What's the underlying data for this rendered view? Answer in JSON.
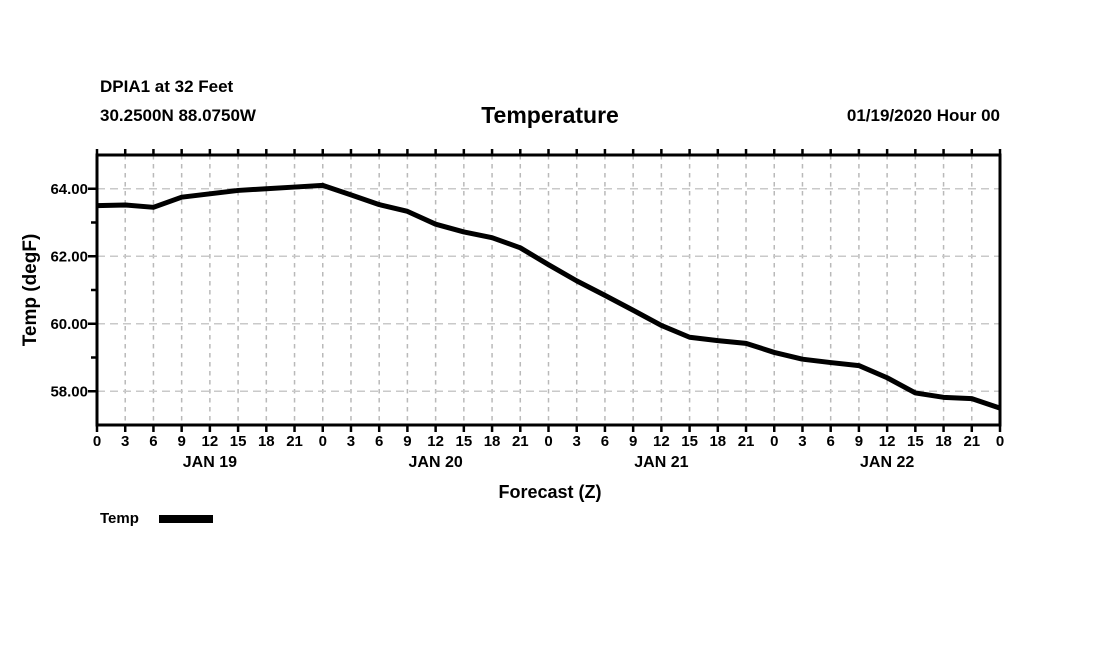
{
  "header": {
    "station": "DPIA1 at 32 Feet",
    "coordinates": "30.2500N 88.0750W",
    "title": "Temperature",
    "init_time": "01/19/2020 Hour 00"
  },
  "legend": {
    "label": "Temp",
    "swatch_color": "#000000"
  },
  "colors": {
    "line": "#000000",
    "grid_vertical": "#b9b9b9",
    "grid_horizontal": "#c9c9c9",
    "axis": "#000000",
    "text": "#000000",
    "background": "#ffffff"
  },
  "chart_data": {
    "type": "line",
    "title": "Temperature",
    "xlabel": "Forecast (Z)",
    "ylabel": "Temp (degF)",
    "xlim": [
      0,
      96
    ],
    "ylim": [
      57,
      65
    ],
    "grid": true,
    "x": [
      0,
      3,
      6,
      9,
      12,
      15,
      18,
      21,
      24,
      27,
      30,
      33,
      36,
      39,
      42,
      45,
      48,
      51,
      54,
      57,
      60,
      63,
      66,
      69,
      72,
      75,
      78,
      81,
      84,
      87,
      90,
      93,
      96
    ],
    "x_tick_labels": [
      "0",
      "3",
      "6",
      "9",
      "12",
      "15",
      "18",
      "21",
      "0",
      "3",
      "6",
      "9",
      "12",
      "15",
      "18",
      "21",
      "0",
      "3",
      "6",
      "9",
      "12",
      "15",
      "18",
      "21",
      "0",
      "3",
      "6",
      "9",
      "12",
      "15",
      "18",
      "21",
      "0"
    ],
    "day_labels": [
      {
        "text": "JAN 19",
        "center_x": 12
      },
      {
        "text": "JAN 20",
        "center_x": 36
      },
      {
        "text": "JAN 21",
        "center_x": 60
      },
      {
        "text": "JAN 22",
        "center_x": 84
      }
    ],
    "y_major_ticks": [
      58,
      60,
      62,
      64
    ],
    "y_major_tick_labels": [
      "58.00",
      "60.00",
      "62.00",
      "64.00"
    ],
    "y_minor_ticks": [
      59,
      61,
      63
    ],
    "legend_position": "bottom-left",
    "series": [
      {
        "name": "Temp",
        "color": "#000000",
        "values": [
          63.5,
          63.52,
          63.45,
          63.75,
          63.85,
          63.95,
          64.0,
          64.05,
          64.1,
          63.82,
          63.53,
          63.33,
          62.95,
          62.72,
          62.55,
          62.25,
          61.75,
          61.27,
          60.84,
          60.4,
          59.95,
          59.6,
          59.5,
          59.42,
          59.15,
          58.95,
          58.85,
          58.76,
          58.4,
          57.95,
          57.82,
          57.78,
          57.5
        ]
      }
    ]
  }
}
